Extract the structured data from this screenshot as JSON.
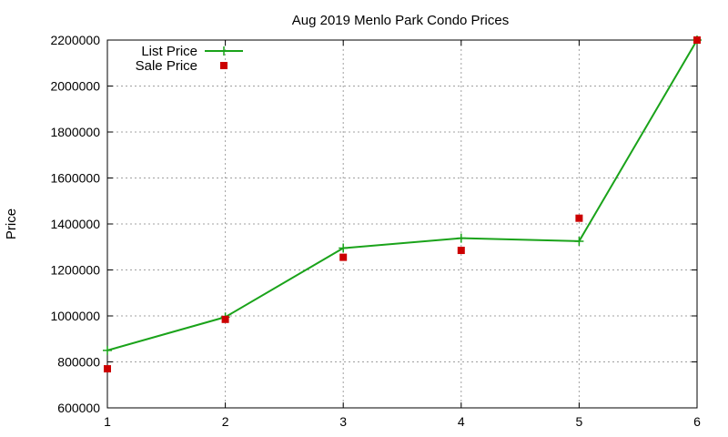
{
  "chart_data": {
    "type": "line",
    "title": "Aug 2019 Menlo Park Condo Prices",
    "xlabel": "",
    "ylabel": "Price",
    "x": [
      1,
      2,
      3,
      4,
      5,
      6
    ],
    "xlim": [
      1,
      6
    ],
    "ylim": [
      600000,
      2200000
    ],
    "xticks": [
      "1",
      "2",
      "3",
      "4",
      "5",
      "6"
    ],
    "yticks": [
      "600000",
      "800000",
      "1000000",
      "1200000",
      "1400000",
      "1600000",
      "1800000",
      "2000000",
      "2200000"
    ],
    "grid": true,
    "legend_position": "top-left",
    "series": [
      {
        "name": "List Price",
        "style": "line-with-plus-markers",
        "color": "#1aa31a",
        "values": [
          850000,
          995000,
          1295000,
          1338000,
          1325000,
          2200000
        ]
      },
      {
        "name": "Sale Price",
        "style": "square-markers",
        "color": "#cc0000",
        "values": [
          770000,
          985000,
          1255000,
          1285000,
          1425000,
          2200000
        ]
      }
    ]
  }
}
